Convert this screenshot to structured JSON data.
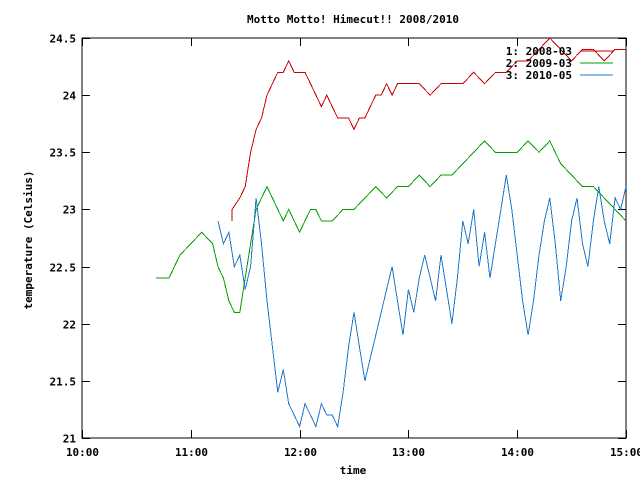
{
  "chart_data": {
    "type": "line",
    "title": "Motto Motto! Himecut!! 2008/2010",
    "xlabel": "time",
    "ylabel": "temperature (Celsius)",
    "x_unit": "clock time (hours)",
    "xlim": [
      10.0,
      15.0
    ],
    "ylim": [
      21.0,
      24.5
    ],
    "x_ticks": [
      {
        "value": 10,
        "label": "10:00"
      },
      {
        "value": 11,
        "label": "11:00"
      },
      {
        "value": 12,
        "label": "12:00"
      },
      {
        "value": 13,
        "label": "13:00"
      },
      {
        "value": 14,
        "label": "14:00"
      },
      {
        "value": 15,
        "label": "15:00"
      }
    ],
    "y_ticks": [
      {
        "value": 21,
        "label": "21"
      },
      {
        "value": 21.5,
        "label": "21.5"
      },
      {
        "value": 22,
        "label": "22"
      },
      {
        "value": 22.5,
        "label": "22.5"
      },
      {
        "value": 23,
        "label": "23"
      },
      {
        "value": 23.5,
        "label": "23.5"
      },
      {
        "value": 24,
        "label": "24"
      },
      {
        "value": 24.5,
        "label": "24.5"
      }
    ],
    "legend_position": "top-right",
    "grid": false,
    "series": [
      {
        "name": "1: 2008-03",
        "color": "#cc0000",
        "x": [
          11.38,
          11.38,
          11.45,
          11.5,
          11.55,
          11.6,
          11.65,
          11.7,
          11.75,
          11.8,
          11.85,
          11.9,
          11.95,
          12.0,
          12.05,
          12.1,
          12.15,
          12.2,
          12.25,
          12.3,
          12.35,
          12.4,
          12.45,
          12.5,
          12.55,
          12.6,
          12.65,
          12.7,
          12.75,
          12.8,
          12.85,
          12.9,
          12.95,
          13.0,
          13.1,
          13.2,
          13.3,
          13.4,
          13.5,
          13.6,
          13.7,
          13.8,
          13.9,
          14.0,
          14.1,
          14.2,
          14.3,
          14.4,
          14.5,
          14.6,
          14.7,
          14.8,
          14.9,
          15.0
        ],
        "y": [
          22.9,
          23.0,
          23.1,
          23.2,
          23.5,
          23.7,
          23.8,
          24.0,
          24.1,
          24.2,
          24.2,
          24.3,
          24.2,
          24.2,
          24.2,
          24.1,
          24.0,
          23.9,
          24.0,
          23.9,
          23.8,
          23.8,
          23.8,
          23.7,
          23.8,
          23.8,
          23.9,
          24.0,
          24.0,
          24.1,
          24.0,
          24.1,
          24.1,
          24.1,
          24.1,
          24.0,
          24.1,
          24.1,
          24.1,
          24.2,
          24.1,
          24.2,
          24.2,
          24.3,
          24.3,
          24.4,
          24.5,
          24.4,
          24.3,
          24.4,
          24.4,
          24.3,
          24.4,
          24.4
        ]
      },
      {
        "name": "2: 2009-03",
        "color": "#00a000",
        "x": [
          10.68,
          10.8,
          10.9,
          11.0,
          11.1,
          11.2,
          11.25,
          11.3,
          11.35,
          11.4,
          11.45,
          11.5,
          11.55,
          11.6,
          11.65,
          11.7,
          11.75,
          11.8,
          11.85,
          11.9,
          11.95,
          12.0,
          12.05,
          12.1,
          12.15,
          12.2,
          12.3,
          12.4,
          12.5,
          12.6,
          12.7,
          12.8,
          12.9,
          13.0,
          13.1,
          13.2,
          13.3,
          13.4,
          13.5,
          13.6,
          13.7,
          13.8,
          13.9,
          14.0,
          14.1,
          14.2,
          14.3,
          14.4,
          14.5,
          14.6,
          14.7,
          14.8,
          14.9,
          15.0
        ],
        "y": [
          22.4,
          22.4,
          22.6,
          22.7,
          22.8,
          22.7,
          22.5,
          22.4,
          22.2,
          22.1,
          22.1,
          22.4,
          22.7,
          23.0,
          23.1,
          23.2,
          23.1,
          23.0,
          22.9,
          23.0,
          22.9,
          22.8,
          22.9,
          23.0,
          23.0,
          22.9,
          22.9,
          23.0,
          23.0,
          23.1,
          23.2,
          23.1,
          23.2,
          23.2,
          23.3,
          23.2,
          23.3,
          23.3,
          23.4,
          23.5,
          23.6,
          23.5,
          23.5,
          23.5,
          23.6,
          23.5,
          23.6,
          23.4,
          23.3,
          23.2,
          23.2,
          23.1,
          23.0,
          22.9
        ]
      },
      {
        "name": "3: 2010-05",
        "color": "#1f78c8",
        "x": [
          11.25,
          11.3,
          11.35,
          11.4,
          11.45,
          11.5,
          11.55,
          11.6,
          11.65,
          11.7,
          11.75,
          11.8,
          11.85,
          11.9,
          11.95,
          12.0,
          12.05,
          12.1,
          12.15,
          12.2,
          12.25,
          12.3,
          12.35,
          12.4,
          12.45,
          12.5,
          12.55,
          12.6,
          12.65,
          12.7,
          12.75,
          12.8,
          12.85,
          12.9,
          12.95,
          13.0,
          13.05,
          13.1,
          13.15,
          13.2,
          13.25,
          13.3,
          13.35,
          13.4,
          13.45,
          13.5,
          13.55,
          13.6,
          13.65,
          13.7,
          13.75,
          13.8,
          13.85,
          13.9,
          13.95,
          14.0,
          14.05,
          14.1,
          14.15,
          14.2,
          14.25,
          14.3,
          14.35,
          14.4,
          14.45,
          14.5,
          14.55,
          14.6,
          14.65,
          14.7,
          14.75,
          14.8,
          14.85,
          14.9,
          14.95,
          15.0
        ],
        "y": [
          22.9,
          22.7,
          22.8,
          22.5,
          22.6,
          22.3,
          22.5,
          23.1,
          22.7,
          22.2,
          21.8,
          21.4,
          21.6,
          21.3,
          21.2,
          21.1,
          21.3,
          21.2,
          21.1,
          21.3,
          21.2,
          21.2,
          21.1,
          21.4,
          21.8,
          22.1,
          21.8,
          21.5,
          21.7,
          21.9,
          22.1,
          22.3,
          22.5,
          22.2,
          21.9,
          22.3,
          22.1,
          22.4,
          22.6,
          22.4,
          22.2,
          22.6,
          22.3,
          22.0,
          22.4,
          22.9,
          22.7,
          23.0,
          22.5,
          22.8,
          22.4,
          22.7,
          23.0,
          23.3,
          23.0,
          22.6,
          22.2,
          21.9,
          22.2,
          22.6,
          22.9,
          23.1,
          22.7,
          22.2,
          22.5,
          22.9,
          23.1,
          22.7,
          22.5,
          22.9,
          23.2,
          22.9,
          22.7,
          23.1,
          23.0,
          23.2
        ]
      }
    ]
  }
}
